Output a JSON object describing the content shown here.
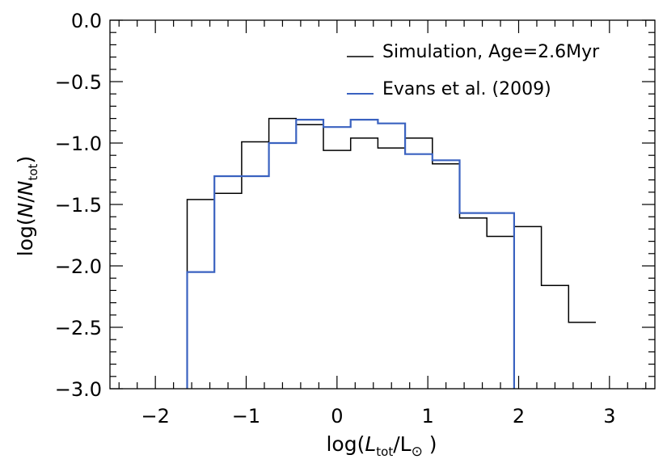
{
  "chart_data": {
    "type": "histogram",
    "title": "",
    "xlabel": "log(L_tot/L_⊙)",
    "ylabel": "log(N/N_tot)",
    "xlim": [
      -2.5,
      3.5
    ],
    "ylim": [
      -3.0,
      0.0
    ],
    "x_ticks": [
      -2,
      -1,
      0,
      1,
      2,
      3
    ],
    "x_tick_labels": [
      "−2",
      "−1",
      "0",
      "1",
      "2",
      "3"
    ],
    "y_ticks": [
      -3.0,
      -2.5,
      -2.0,
      -1.5,
      -1.0,
      -0.5,
      0.0
    ],
    "y_tick_labels": [
      "−3.0",
      "−2.5",
      "−2.0",
      "−1.5",
      "−1.0",
      "−0.5",
      "0.0"
    ],
    "legend_position": "top-right",
    "series": [
      {
        "name": "Simulation, Age=2.6Myr",
        "color": "#000000",
        "bin_edges": [
          -1.65,
          -1.35,
          -1.05,
          -0.75,
          -0.45,
          -0.15,
          0.15,
          0.45,
          0.75,
          1.05,
          1.35,
          1.65,
          1.95,
          2.25,
          2.55,
          2.85
        ],
        "values": [
          -1.46,
          -1.41,
          -0.99,
          -0.8,
          -0.85,
          -1.06,
          -0.96,
          -1.04,
          -0.96,
          -1.17,
          -1.61,
          -1.76,
          -1.68,
          -2.16,
          -2.46
        ]
      },
      {
        "name": "Evans et al. (2009)",
        "color": "#3a62c0",
        "bin_edges": [
          -1.65,
          -1.35,
          -1.05,
          -0.75,
          -0.45,
          -0.15,
          0.15,
          0.45,
          0.75,
          1.05,
          1.35,
          1.95
        ],
        "values": [
          -2.05,
          -1.27,
          -1.27,
          -1.0,
          -0.81,
          -0.87,
          -0.81,
          -0.84,
          -1.09,
          -1.14,
          -1.57
        ]
      }
    ]
  }
}
